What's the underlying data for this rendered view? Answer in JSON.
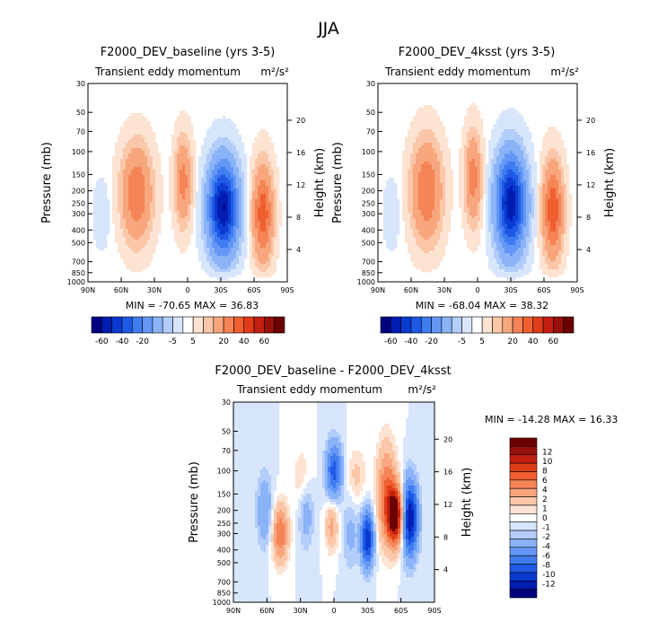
{
  "figure_title": "JJA",
  "colors": {
    "neg": [
      "#00007f",
      "#001db2",
      "#0a3ad0",
      "#1f5ae6",
      "#3f7cf0",
      "#6497f5",
      "#8ab3f8",
      "#b2cdfa",
      "#d8e6fc"
    ],
    "zero": "#ffffff",
    "pos": [
      "#fde3d2",
      "#fbc7a8",
      "#f8a67d",
      "#f58456",
      "#ef5f30",
      "#e03c1a",
      "#c21f10",
      "#98100a",
      "#6b0000"
    ]
  },
  "chart_data": [
    {
      "type": "heatmap",
      "id": "baseline",
      "title": "F2000_DEV_baseline (yrs 3-5)",
      "subtitle": "Transient eddy momentum",
      "units": "m²/s²",
      "xlabel": "",
      "ylabel": "Pressure (mb)",
      "y2label": "Height (km)",
      "xticks": [
        "90N",
        "60N",
        "30N",
        "0",
        "30S",
        "60S",
        "90S"
      ],
      "yticks": [
        "30",
        "50",
        "70",
        "100",
        "150",
        "200",
        "250",
        "300",
        "400",
        "500",
        "700",
        "850",
        "1000"
      ],
      "y2ticks": [
        "20",
        "16",
        "12",
        "8",
        "4"
      ],
      "stats": "MIN = -70.65   MAX = 36.83",
      "colorbar_labels": [
        "-60",
        "-40",
        "-20",
        "-5",
        "5",
        "20",
        "40",
        "60"
      ],
      "levels": [
        -70,
        -60,
        -50,
        -40,
        -30,
        -20,
        -10,
        -5,
        -1,
        1,
        5,
        10,
        20,
        30,
        40,
        50,
        60,
        70
      ],
      "features": [
        {
          "lat": 46,
          "p": 210,
          "amp": 30,
          "wlat": 9,
          "wz": 0.55
        },
        {
          "lat": 4,
          "p": 170,
          "amp": 24,
          "wlat": 5,
          "wz": 0.5
        },
        {
          "lat": -32,
          "p": 270,
          "amp": -70.65,
          "wlat": 9,
          "wz": 0.55
        },
        {
          "lat": -68,
          "p": 300,
          "amp": 36.83,
          "wlat": 6,
          "wz": 0.55
        },
        {
          "lat": 78,
          "p": 300,
          "amp": -4,
          "wlat": 5,
          "wz": 0.4
        }
      ]
    },
    {
      "type": "heatmap",
      "id": "4ksst",
      "title": "F2000_DEV_4ksst (yrs 3-5)",
      "subtitle": "Transient eddy momentum",
      "units": "m²/s²",
      "xlabel": "",
      "ylabel": "Pressure (mb)",
      "y2label": "Height (km)",
      "xticks": [
        "90N",
        "60N",
        "30N",
        "0",
        "30S",
        "60S",
        "90S"
      ],
      "yticks": [
        "30",
        "50",
        "70",
        "100",
        "150",
        "200",
        "250",
        "300",
        "400",
        "500",
        "700",
        "850",
        "1000"
      ],
      "y2ticks": [
        "20",
        "16",
        "12",
        "8",
        "4"
      ],
      "stats": "MIN = -68.04   MAX = 38.32",
      "colorbar_labels": [
        "-60",
        "-40",
        "-20",
        "-5",
        "5",
        "20",
        "40",
        "60"
      ],
      "levels": [
        -70,
        -60,
        -50,
        -40,
        -30,
        -20,
        -10,
        -5,
        -1,
        1,
        5,
        10,
        20,
        30,
        40,
        50,
        60,
        70
      ],
      "features": [
        {
          "lat": 46,
          "p": 200,
          "amp": 30,
          "wlat": 9,
          "wz": 0.58
        },
        {
          "lat": 4,
          "p": 160,
          "amp": 25,
          "wlat": 5,
          "wz": 0.52
        },
        {
          "lat": -30,
          "p": 250,
          "amp": -68.04,
          "wlat": 9,
          "wz": 0.58
        },
        {
          "lat": -68,
          "p": 280,
          "amp": 38.32,
          "wlat": 6,
          "wz": 0.55
        },
        {
          "lat": 78,
          "p": 300,
          "amp": -4,
          "wlat": 5,
          "wz": 0.4
        }
      ]
    },
    {
      "type": "heatmap",
      "id": "diff",
      "title": "F2000_DEV_baseline - F2000_DEV_4ksst",
      "subtitle": "Transient eddy momentum",
      "units": "m²/s²",
      "xlabel": "",
      "ylabel": "Pressure (mb)",
      "y2label": "Height (km)",
      "xticks": [
        "90N",
        "60N",
        "30N",
        "0",
        "30S",
        "60S",
        "90S"
      ],
      "yticks": [
        "30",
        "50",
        "70",
        "100",
        "150",
        "200",
        "250",
        "300",
        "400",
        "500",
        "700",
        "850",
        "1000"
      ],
      "y2ticks": [
        "20",
        "16",
        "12",
        "8",
        "4"
      ],
      "stats": "MIN = -14.28   MAX =  16.33",
      "colorbar_labels": [
        "12",
        "10",
        "8",
        "6",
        "4",
        "2",
        "1",
        "0",
        "-1",
        "-2",
        "-4",
        "-6",
        "-8",
        "-10",
        "-12"
      ],
      "levels": [
        -14,
        -12,
        -10,
        -8,
        -6,
        -4,
        -2,
        -1,
        0,
        1,
        2,
        4,
        6,
        8,
        10,
        12,
        14
      ],
      "features": [
        {
          "lat": -55,
          "p": 220,
          "amp": 16.33,
          "wlat": 5,
          "wz": 0.35
        },
        {
          "lat": -47,
          "p": 150,
          "amp": 8,
          "wlat": 6,
          "wz": 0.6
        },
        {
          "lat": -68,
          "p": 230,
          "amp": -14.28,
          "wlat": 5,
          "wz": 0.45
        },
        {
          "lat": -30,
          "p": 330,
          "amp": -12,
          "wlat": 4,
          "wz": 0.35
        },
        {
          "lat": 0,
          "p": 100,
          "amp": -9,
          "wlat": 5,
          "wz": 0.35
        },
        {
          "lat": 48,
          "p": 300,
          "amp": 8,
          "wlat": 5,
          "wz": 0.35
        },
        {
          "lat": 2,
          "p": 260,
          "amp": 5,
          "wlat": 4,
          "wz": 0.3
        },
        {
          "lat": 62,
          "p": 200,
          "amp": -4,
          "wlat": 5,
          "wz": 0.45
        },
        {
          "lat": 25,
          "p": 200,
          "amp": -3.5,
          "wlat": 5,
          "wz": 0.45
        },
        {
          "lat": 28,
          "p": 120,
          "amp": 2.5,
          "wlat": 6,
          "wz": 0.4
        },
        {
          "lat": -15,
          "p": 300,
          "amp": -2.5,
          "wlat": 5,
          "wz": 0.45
        },
        {
          "lat": -20,
          "p": 110,
          "amp": 2.5,
          "wlat": 6,
          "wz": 0.35
        }
      ]
    }
  ]
}
